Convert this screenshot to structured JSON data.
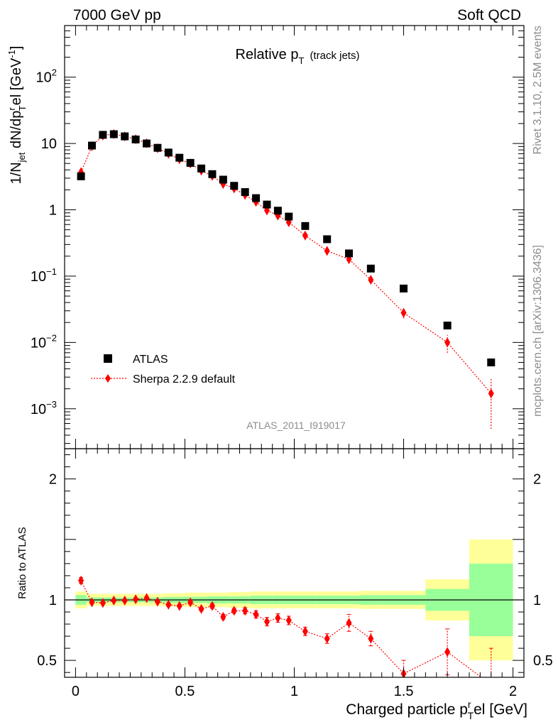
{
  "header": {
    "energy_label": "7000 GeV pp",
    "process_label": "Soft QCD"
  },
  "side_labels": {
    "rivet": "Rivet 3.1.10,  2.5M events",
    "mcplots": "mcplots.cern.ch [arXiv:1306.3436]"
  },
  "chart_data": [
    {
      "type": "scatter",
      "panel": "main",
      "title": "Relative p",
      "title_sub": "T",
      "title_extra": "(track jets)",
      "ylabel": "1/N_jet dN/dp_T^rel [GeV^-1]",
      "yscale": "log",
      "ylim": [
        0.00025,
        600
      ],
      "xlim": [
        -0.05,
        2.05
      ],
      "yticks": [
        {
          "value": 0.001,
          "base": "10",
          "exp": "−3"
        },
        {
          "value": 0.01,
          "base": "10",
          "exp": "−2"
        },
        {
          "value": 0.1,
          "base": "10",
          "exp": "−1"
        },
        {
          "value": 1,
          "base": "1",
          "exp": ""
        },
        {
          "value": 10,
          "base": "10",
          "exp": ""
        },
        {
          "value": 100,
          "base": "10",
          "exp": "2"
        }
      ],
      "analysis_label": "ATLAS_2011_I919017",
      "legend": {
        "position": "bottom-left"
      },
      "series": [
        {
          "name": "ATLAS",
          "color": "#000000",
          "marker": "square",
          "x": [
            0.025,
            0.075,
            0.125,
            0.175,
            0.225,
            0.275,
            0.325,
            0.375,
            0.425,
            0.475,
            0.525,
            0.575,
            0.625,
            0.675,
            0.725,
            0.775,
            0.825,
            0.875,
            0.925,
            0.975,
            1.05,
            1.15,
            1.25,
            1.35,
            1.5,
            1.7,
            1.9
          ],
          "y": [
            3.2,
            9.3,
            13.5,
            13.8,
            12.8,
            11.5,
            10.0,
            8.6,
            7.3,
            6.1,
            5.1,
            4.2,
            3.45,
            2.85,
            2.3,
            1.85,
            1.5,
            1.2,
            0.97,
            0.79,
            0.57,
            0.36,
            0.22,
            0.13,
            0.065,
            0.018,
            0.005
          ]
        },
        {
          "name": "Sherpa 2.2.9 default",
          "color": "#ff0000",
          "marker": "diamond",
          "x": [
            0.025,
            0.075,
            0.125,
            0.175,
            0.225,
            0.275,
            0.325,
            0.375,
            0.425,
            0.475,
            0.525,
            0.575,
            0.625,
            0.675,
            0.725,
            0.775,
            0.825,
            0.875,
            0.925,
            0.975,
            1.05,
            1.15,
            1.25,
            1.35,
            1.5,
            1.7,
            1.9
          ],
          "y": [
            3.7,
            9.1,
            13.2,
            13.9,
            12.8,
            11.6,
            10.1,
            8.5,
            7.0,
            5.8,
            5.0,
            3.9,
            3.25,
            2.45,
            2.1,
            1.68,
            1.32,
            0.98,
            0.82,
            0.65,
            0.41,
            0.24,
            0.18,
            0.088,
            0.028,
            0.01,
            0.0017
          ],
          "yerr": [
            0,
            0,
            0,
            0,
            0,
            0,
            0,
            0,
            0,
            0,
            0,
            0,
            0,
            0,
            0,
            0,
            0,
            0,
            0,
            0,
            0.03,
            0.02,
            0.02,
            0.012,
            0.005,
            0.003,
            0.0012
          ]
        }
      ]
    },
    {
      "type": "scatter",
      "panel": "ratio",
      "ylabel": "Ratio to ATLAS",
      "xlabel": "Charged particle p_T^rel [GeV]",
      "ylim": [
        0.36,
        2.25
      ],
      "xlim": [
        -0.05,
        2.05
      ],
      "xticks": [
        {
          "value": 0,
          "label": "0"
        },
        {
          "value": 0.5,
          "label": "0.5"
        },
        {
          "value": 1,
          "label": "1"
        },
        {
          "value": 1.5,
          "label": "1.5"
        },
        {
          "value": 2,
          "label": "2"
        }
      ],
      "yticks": [
        {
          "value": 0.5,
          "label": "0.5"
        },
        {
          "value": 1,
          "label": "1"
        },
        {
          "value": 2,
          "label": "2"
        }
      ],
      "bands": {
        "stat_color": "#99ff99",
        "total_color": "#ffff99",
        "edges": [
          0.0,
          0.05,
          0.1,
          0.15,
          0.2,
          0.25,
          0.3,
          0.35,
          0.4,
          0.45,
          0.5,
          0.55,
          0.6,
          0.65,
          0.7,
          0.75,
          0.8,
          0.85,
          0.9,
          0.95,
          1.0,
          1.1,
          1.2,
          1.3,
          1.4,
          1.6,
          1.8,
          2.0
        ],
        "stat": [
          0.04,
          0.02,
          0.02,
          0.02,
          0.02,
          0.02,
          0.02,
          0.02,
          0.025,
          0.025,
          0.025,
          0.025,
          0.03,
          0.03,
          0.03,
          0.03,
          0.035,
          0.035,
          0.035,
          0.035,
          0.035,
          0.035,
          0.035,
          0.04,
          0.04,
          0.09,
          0.3
        ],
        "total": [
          0.07,
          0.05,
          0.05,
          0.05,
          0.05,
          0.05,
          0.05,
          0.05,
          0.055,
          0.055,
          0.06,
          0.06,
          0.06,
          0.06,
          0.065,
          0.065,
          0.07,
          0.07,
          0.07,
          0.07,
          0.07,
          0.07,
          0.07,
          0.075,
          0.075,
          0.17,
          0.5
        ]
      },
      "series": [
        {
          "name": "Sherpa 2.2.9 default",
          "color": "#ff0000",
          "x": [
            0.025,
            0.075,
            0.125,
            0.175,
            0.225,
            0.275,
            0.325,
            0.375,
            0.425,
            0.475,
            0.525,
            0.575,
            0.625,
            0.675,
            0.725,
            0.775,
            0.825,
            0.875,
            0.925,
            0.975,
            1.05,
            1.15,
            1.25,
            1.35,
            1.5,
            1.7,
            1.9
          ],
          "y": [
            1.16,
            0.98,
            0.975,
            0.995,
            0.995,
            1.005,
            1.015,
            0.985,
            0.96,
            0.95,
            0.98,
            0.925,
            0.95,
            0.86,
            0.91,
            0.91,
            0.88,
            0.82,
            0.85,
            0.83,
            0.74,
            0.68,
            0.81,
            0.68,
            0.39,
            0.57,
            0.3
          ],
          "yerr": [
            0.025,
            0.01,
            0.01,
            0.01,
            0.01,
            0.01,
            0.01,
            0.01,
            0.01,
            0.01,
            0.015,
            0.015,
            0.02,
            0.02,
            0.02,
            0.025,
            0.03,
            0.035,
            0.035,
            0.035,
            0.035,
            0.04,
            0.07,
            0.06,
            0.11,
            0.19,
            0.3
          ]
        }
      ]
    }
  ]
}
